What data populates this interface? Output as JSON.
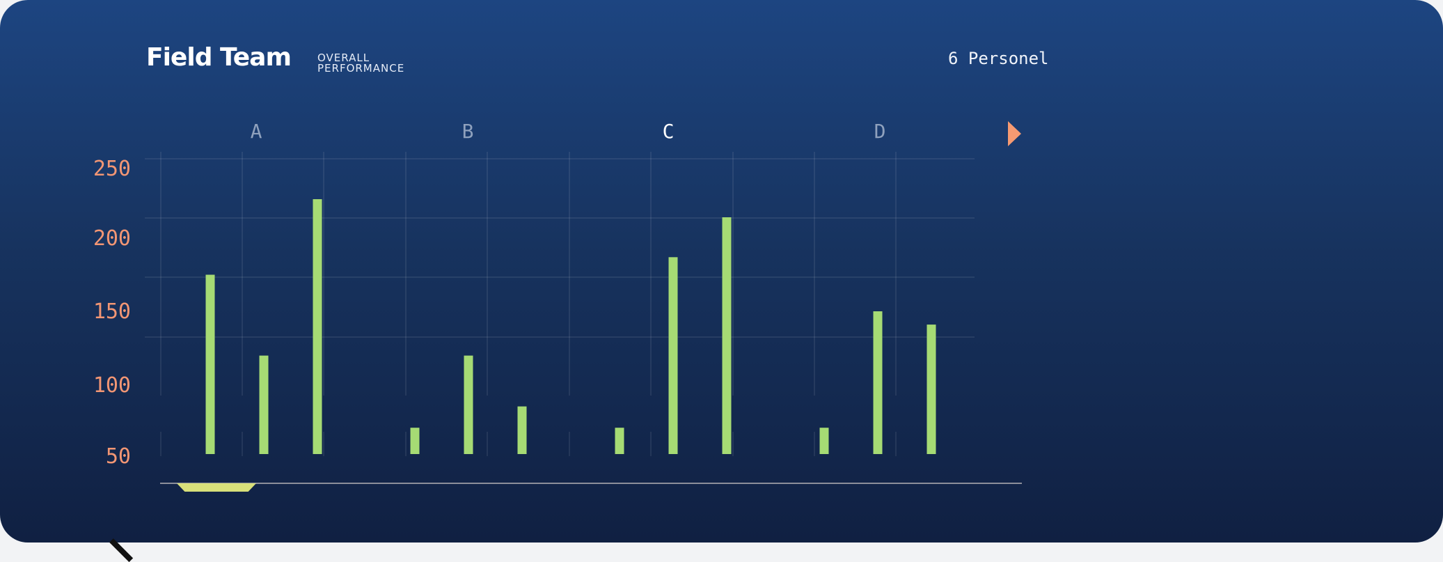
{
  "header": {
    "title": "Field Team",
    "subtitle_line1": "OVERALL",
    "subtitle_line2": "PERFORMANCE",
    "personnel": "6 Personel"
  },
  "colors": {
    "bar": "#a6db74",
    "tick": "#f29674",
    "category_inactive": "#8fa1bd",
    "category_active": "#ffffff",
    "arrow": "#f59a72",
    "scrubber": "#d8e07a"
  },
  "icons": {
    "next": "play-triangle-icon",
    "scrubber": "range-handle-icon"
  },
  "chart_data": {
    "type": "bar",
    "categories": [
      "A",
      "B",
      "C",
      "D"
    ],
    "active_category": "C",
    "yticks": [
      250,
      200,
      150,
      100,
      50
    ],
    "grid": true,
    "legend": "none",
    "groups": [
      {
        "category": "A",
        "values": [
          175,
          120,
          228
        ]
      },
      {
        "category": "B",
        "values": [
          70,
          120,
          85
        ]
      },
      {
        "category": "C",
        "values": [
          70,
          187,
          215
        ]
      },
      {
        "category": "D",
        "values": [
          70,
          150,
          141
        ]
      }
    ]
  }
}
